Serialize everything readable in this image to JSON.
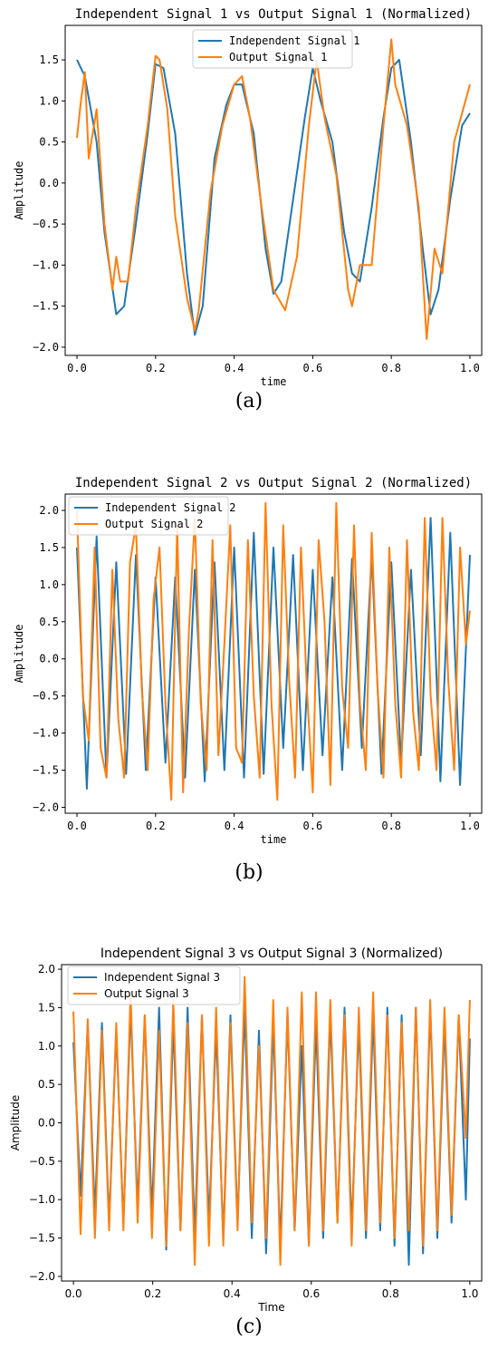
{
  "chart_data": [
    {
      "type": "line",
      "title": "Independent Signal 1 vs Output Signal 1 (Normalized)",
      "xlabel": "time",
      "ylabel": "Amplitude",
      "xlim": [
        -0.03,
        1.03
      ],
      "ylim": [
        -2.1,
        1.92
      ],
      "xticks": [
        0.0,
        0.2,
        0.4,
        0.6,
        0.8,
        1.0
      ],
      "xtick_labels": [
        "0.0",
        "0.2",
        "0.4",
        "0.6",
        "0.8",
        "1.0"
      ],
      "yticks": [
        -2.0,
        -1.5,
        -1.0,
        -0.5,
        0.0,
        0.5,
        1.0,
        1.5
      ],
      "ytick_labels": [
        "−2.0",
        "−1.5",
        "−1.0",
        "−0.5",
        "0.0",
        "0.5",
        "1.0",
        "1.5"
      ],
      "legend_position": "upper-center",
      "grid": false,
      "caption": "(a)",
      "series": [
        {
          "name": "Independent Signal 1",
          "color": "#1f77b4",
          "x": [
            0.0,
            0.02,
            0.05,
            0.07,
            0.1,
            0.12,
            0.15,
            0.18,
            0.2,
            0.22,
            0.25,
            0.28,
            0.3,
            0.32,
            0.35,
            0.38,
            0.4,
            0.42,
            0.45,
            0.48,
            0.5,
            0.52,
            0.55,
            0.58,
            0.6,
            0.62,
            0.65,
            0.68,
            0.7,
            0.72,
            0.75,
            0.78,
            0.8,
            0.82,
            0.85,
            0.88,
            0.9,
            0.92,
            0.95,
            0.98,
            1.0
          ],
          "y": [
            1.5,
            1.3,
            0.5,
            -0.6,
            -1.6,
            -1.5,
            -0.5,
            0.6,
            1.45,
            1.4,
            0.6,
            -1.1,
            -1.85,
            -1.5,
            0.3,
            0.95,
            1.2,
            1.2,
            0.6,
            -0.8,
            -1.35,
            -1.2,
            -0.2,
            0.8,
            1.4,
            1.0,
            0.5,
            -0.6,
            -1.1,
            -1.2,
            -0.3,
            0.8,
            1.4,
            1.5,
            0.5,
            -0.8,
            -1.6,
            -1.3,
            -0.2,
            0.7,
            0.85
          ]
        },
        {
          "name": "Output Signal 1",
          "color": "#ff7f0e",
          "x": [
            0.0,
            0.01,
            0.02,
            0.03,
            0.05,
            0.07,
            0.09,
            0.1,
            0.11,
            0.13,
            0.15,
            0.18,
            0.2,
            0.21,
            0.23,
            0.25,
            0.28,
            0.3,
            0.31,
            0.34,
            0.37,
            0.4,
            0.42,
            0.44,
            0.47,
            0.5,
            0.53,
            0.56,
            0.59,
            0.61,
            0.63,
            0.66,
            0.69,
            0.7,
            0.72,
            0.75,
            0.78,
            0.8,
            0.81,
            0.84,
            0.87,
            0.89,
            0.91,
            0.93,
            0.96,
            1.0
          ],
          "y": [
            0.55,
            1.0,
            1.35,
            0.3,
            0.9,
            -0.5,
            -1.3,
            -0.9,
            -1.2,
            -1.2,
            -0.3,
            0.7,
            1.55,
            1.5,
            0.9,
            -0.4,
            -1.4,
            -1.8,
            -1.55,
            -0.1,
            0.7,
            1.2,
            1.3,
            0.8,
            -0.3,
            -1.3,
            -1.55,
            -0.9,
            0.7,
            1.5,
            0.8,
            0.1,
            -1.3,
            -1.5,
            -1.0,
            -1.0,
            0.7,
            1.75,
            1.2,
            0.7,
            -0.3,
            -1.9,
            -0.8,
            -1.1,
            0.5,
            1.2
          ]
        }
      ]
    },
    {
      "type": "line",
      "title": "Independent Signal 2 vs Output Signal 2 (Normalized)",
      "xlabel": "time",
      "ylabel": "Amplitude",
      "xlim": [
        -0.03,
        1.03
      ],
      "ylim": [
        -2.08,
        2.22
      ],
      "xticks": [
        0.0,
        0.2,
        0.4,
        0.6,
        0.8,
        1.0
      ],
      "xtick_labels": [
        "0.0",
        "0.2",
        "0.4",
        "0.6",
        "0.8",
        "1.0"
      ],
      "yticks": [
        -2.0,
        -1.5,
        -1.0,
        -0.5,
        0.0,
        0.5,
        1.0,
        1.5,
        2.0
      ],
      "ytick_labels": [
        "−2.0",
        "−1.5",
        "−1.0",
        "−0.5",
        "0.0",
        "0.5",
        "1.0",
        "1.5",
        "2.0"
      ],
      "legend_position": "upper-left",
      "grid": false,
      "caption": "(b)",
      "series": [
        {
          "name": "Independent Signal 2",
          "color": "#1f77b4",
          "x": [
            0.0,
            0.025,
            0.05,
            0.075,
            0.1,
            0.125,
            0.15,
            0.175,
            0.2,
            0.225,
            0.25,
            0.275,
            0.3,
            0.325,
            0.35,
            0.375,
            0.4,
            0.425,
            0.45,
            0.475,
            0.5,
            0.525,
            0.55,
            0.575,
            0.6,
            0.625,
            0.65,
            0.675,
            0.7,
            0.725,
            0.75,
            0.775,
            0.8,
            0.825,
            0.85,
            0.875,
            0.9,
            0.925,
            0.95,
            0.975,
            1.0
          ],
          "y": [
            1.5,
            -1.75,
            1.65,
            -1.6,
            1.3,
            -1.55,
            1.4,
            -1.5,
            1.1,
            -1.4,
            1.1,
            -1.6,
            1.2,
            -1.65,
            1.3,
            -1.5,
            1.5,
            -1.6,
            1.7,
            -1.55,
            1.5,
            -1.2,
            1.4,
            -1.5,
            1.2,
            -1.3,
            1.1,
            -1.5,
            1.35,
            -1.2,
            1.4,
            -1.55,
            1.3,
            -1.4,
            1.2,
            -1.3,
            1.9,
            -1.65,
            1.7,
            -1.7,
            1.4
          ]
        },
        {
          "name": "Output Signal 2",
          "color": "#ff7f0e",
          "x": [
            0.0,
            0.015,
            0.03,
            0.045,
            0.06,
            0.075,
            0.09,
            0.105,
            0.12,
            0.135,
            0.15,
            0.165,
            0.18,
            0.195,
            0.21,
            0.225,
            0.24,
            0.255,
            0.27,
            0.285,
            0.3,
            0.315,
            0.33,
            0.345,
            0.36,
            0.375,
            0.39,
            0.405,
            0.42,
            0.435,
            0.45,
            0.465,
            0.48,
            0.495,
            0.51,
            0.525,
            0.54,
            0.555,
            0.57,
            0.585,
            0.6,
            0.615,
            0.63,
            0.645,
            0.66,
            0.675,
            0.69,
            0.705,
            0.72,
            0.735,
            0.75,
            0.765,
            0.78,
            0.795,
            0.81,
            0.825,
            0.84,
            0.855,
            0.87,
            0.885,
            0.9,
            0.915,
            0.93,
            0.945,
            0.96,
            0.975,
            0.99,
            1.0
          ],
          "y": [
            2.0,
            -0.5,
            -1.1,
            1.5,
            -1.2,
            -1.6,
            1.2,
            -0.8,
            -1.6,
            1.3,
            1.8,
            -0.4,
            -1.5,
            0.8,
            1.5,
            -0.6,
            -1.9,
            1.8,
            -1.8,
            0.4,
            1.9,
            -0.6,
            -1.5,
            1.6,
            -1.3,
            0.2,
            1.8,
            -1.2,
            -1.4,
            1.6,
            -0.5,
            -1.6,
            2.1,
            -0.6,
            -1.9,
            1.8,
            -0.3,
            -1.6,
            1.5,
            -0.4,
            -1.8,
            1.6,
            0.5,
            -1.7,
            2.1,
            -0.4,
            -1.2,
            1.8,
            -0.6,
            -1.5,
            1.7,
            -0.4,
            -1.6,
            1.5,
            -0.6,
            -1.6,
            1.6,
            -0.7,
            -1.5,
            1.9,
            -0.5,
            -1.5,
            1.9,
            -0.3,
            -1.5,
            1.5,
            0.2,
            0.65
          ]
        }
      ]
    },
    {
      "type": "line",
      "title": "Independent Signal 3 vs Output Signal 3 (Normalized)",
      "xlabel": "Time",
      "ylabel": "Amplitude",
      "xlim": [
        -0.03,
        1.03
      ],
      "ylim": [
        -2.06,
        2.06
      ],
      "xticks": [
        0.0,
        0.2,
        0.4,
        0.6,
        0.8,
        1.0
      ],
      "xtick_labels": [
        "0.0",
        "0.2",
        "0.4",
        "0.6",
        "0.8",
        "1.0"
      ],
      "yticks": [
        -2.0,
        -1.5,
        -1.0,
        -0.5,
        0.0,
        0.5,
        1.0,
        1.5,
        2.0
      ],
      "ytick_labels": [
        "−2.0",
        "−1.5",
        "−1.0",
        "−0.5",
        "0.0",
        "0.5",
        "1.0",
        "1.5",
        "2.0"
      ],
      "legend_position": "upper-left",
      "grid": false,
      "caption": "(c)",
      "series": [
        {
          "name": "Independent Signal 3",
          "color": "#1f77b4",
          "x": [
            0.0,
            0.018,
            0.036,
            0.054,
            0.072,
            0.09,
            0.108,
            0.126,
            0.144,
            0.162,
            0.18,
            0.198,
            0.216,
            0.234,
            0.252,
            0.27,
            0.288,
            0.306,
            0.324,
            0.342,
            0.36,
            0.378,
            0.396,
            0.414,
            0.432,
            0.45,
            0.468,
            0.486,
            0.504,
            0.522,
            0.54,
            0.558,
            0.576,
            0.594,
            0.612,
            0.63,
            0.648,
            0.666,
            0.684,
            0.702,
            0.72,
            0.738,
            0.756,
            0.774,
            0.792,
            0.81,
            0.828,
            0.846,
            0.864,
            0.882,
            0.9,
            0.918,
            0.936,
            0.954,
            0.972,
            0.99,
            1.0
          ],
          "y": [
            1.05,
            -0.95,
            1.3,
            -1.2,
            1.3,
            -1.3,
            1.2,
            -1.3,
            1.5,
            -1.1,
            1.4,
            -1.2,
            1.5,
            -1.65,
            1.3,
            -1.4,
            1.5,
            -1.5,
            1.4,
            -1.3,
            1.2,
            -1.5,
            1.4,
            -1.3,
            1.5,
            -1.5,
            1.2,
            -1.7,
            1.3,
            -1.6,
            1.4,
            -1.4,
            1.0,
            -1.6,
            1.3,
            -1.5,
            1.4,
            -1.3,
            1.5,
            -1.4,
            1.3,
            -1.5,
            1.4,
            -1.4,
            1.5,
            -1.6,
            1.4,
            -1.85,
            1.5,
            -1.7,
            1.5,
            -1.5,
            1.3,
            -1.3,
            1.4,
            -1.0,
            1.1
          ]
        },
        {
          "name": "Output Signal 3",
          "color": "#ff7f0e",
          "x": [
            0.0,
            0.018,
            0.036,
            0.054,
            0.072,
            0.09,
            0.108,
            0.126,
            0.144,
            0.162,
            0.18,
            0.198,
            0.216,
            0.234,
            0.252,
            0.27,
            0.288,
            0.306,
            0.324,
            0.342,
            0.36,
            0.378,
            0.396,
            0.414,
            0.432,
            0.45,
            0.468,
            0.486,
            0.504,
            0.522,
            0.54,
            0.558,
            0.576,
            0.594,
            0.612,
            0.63,
            0.648,
            0.666,
            0.684,
            0.702,
            0.72,
            0.738,
            0.756,
            0.774,
            0.792,
            0.81,
            0.828,
            0.846,
            0.864,
            0.882,
            0.9,
            0.918,
            0.936,
            0.954,
            0.972,
            0.99,
            1.0
          ],
          "y": [
            1.45,
            -1.45,
            1.35,
            -1.5,
            1.2,
            -1.4,
            1.3,
            -1.4,
            1.7,
            -1.3,
            1.4,
            -1.5,
            1.2,
            -1.6,
            1.6,
            -1.4,
            1.3,
            -1.85,
            1.4,
            -1.6,
            1.5,
            -1.6,
            1.3,
            -1.4,
            1.9,
            -1.3,
            1.0,
            -1.5,
            1.6,
            -1.85,
            1.5,
            -1.4,
            1.7,
            -1.6,
            1.7,
            -1.4,
            1.6,
            -1.3,
            1.4,
            -1.6,
            1.5,
            -1.4,
            1.7,
            -1.3,
            1.4,
            -1.5,
            1.3,
            -1.4,
            1.5,
            -1.6,
            1.6,
            -1.4,
            1.5,
            -1.2,
            1.4,
            -0.2,
            1.6
          ]
        }
      ]
    }
  ]
}
